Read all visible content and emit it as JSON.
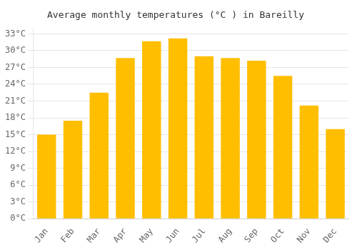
{
  "chart_data": {
    "type": "bar",
    "title": "Average monthly temperatures (°C ) in Bareilly",
    "categories": [
      "Jan",
      "Feb",
      "Mar",
      "Apr",
      "May",
      "Jun",
      "Jul",
      "Aug",
      "Sep",
      "Oct",
      "Nov",
      "Dec"
    ],
    "values": [
      15.0,
      17.5,
      22.5,
      28.7,
      31.7,
      32.2,
      29.0,
      28.7,
      28.2,
      25.5,
      20.2,
      16.0
    ],
    "color": "#FFBE00",
    "ylim": [
      0,
      34
    ],
    "yticks": [
      {
        "value": 0,
        "label": "0°C"
      },
      {
        "value": 3,
        "label": "3°C"
      },
      {
        "value": 6,
        "label": "6°C"
      },
      {
        "value": 9,
        "label": "9°C"
      },
      {
        "value": 12,
        "label": "12°C"
      },
      {
        "value": 15,
        "label": "15°C"
      },
      {
        "value": 18,
        "label": "18°C"
      },
      {
        "value": 21,
        "label": "21°C"
      },
      {
        "value": 24,
        "label": "24°C"
      },
      {
        "value": 27,
        "label": "27°C"
      },
      {
        "value": 30,
        "label": "30°C"
      },
      {
        "value": 33,
        "label": "33°C"
      }
    ],
    "grid": "y"
  }
}
